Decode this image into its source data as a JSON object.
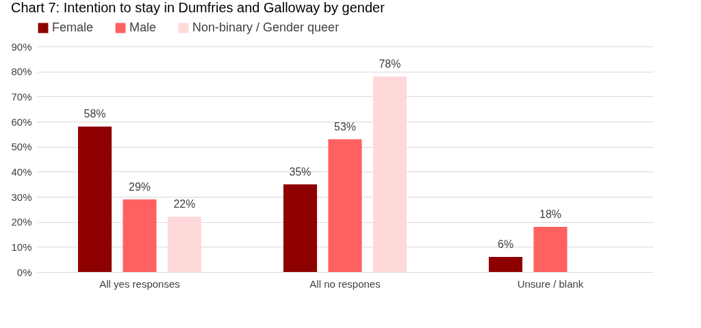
{
  "chart_data": {
    "type": "bar",
    "title": "Chart 7: Intention to stay in Dumfries and Galloway by gender",
    "categories": [
      "All yes responses",
      "All no respones",
      "Unsure / blank"
    ],
    "series": [
      {
        "name": "Female",
        "color": "#8e0000",
        "values": [
          58,
          35,
          6
        ],
        "value_labels": [
          "58%",
          "35%",
          "6%"
        ]
      },
      {
        "name": "Male",
        "color": "#ff6161",
        "values": [
          29,
          53,
          18
        ],
        "value_labels": [
          "29%",
          "53%",
          "18%"
        ]
      },
      {
        "name": "Non-binary / Gender queer",
        "color": "#ffd9da",
        "values": [
          22,
          78,
          null
        ],
        "value_labels": [
          "22%",
          "78%",
          null
        ]
      }
    ],
    "ylim": [
      0,
      90
    ],
    "yticks": [
      {
        "value": 0,
        "label": "0%"
      },
      {
        "value": 10,
        "label": "10%"
      },
      {
        "value": 20,
        "label": "20%"
      },
      {
        "value": 30,
        "label": "30%"
      },
      {
        "value": 40,
        "label": "40%"
      },
      {
        "value": 50,
        "label": "50%"
      },
      {
        "value": 60,
        "label": "60%"
      },
      {
        "value": 70,
        "label": "70%"
      },
      {
        "value": 80,
        "label": "80%"
      },
      {
        "value": 90,
        "label": "90%"
      }
    ],
    "grid": "y",
    "legend": "top"
  }
}
